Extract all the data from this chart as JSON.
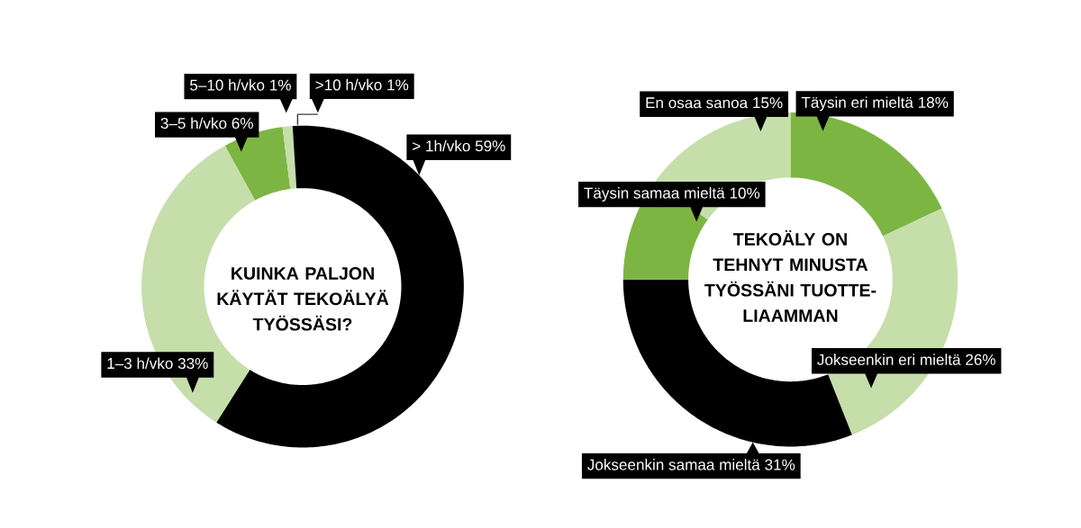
{
  "chart_data": [
    {
      "type": "donut",
      "title": "KUINKA PALJON KÄYTÄT TEKOÄLYÄ TYÖSSÄSI?",
      "categories": [
        "> 1h/vko",
        "1–3 h/vko",
        "3–5 h/vko",
        "5–10 h/vko",
        ">10 h/vko"
      ],
      "values": [
        59,
        33,
        6,
        1,
        1
      ],
      "value_labels": [
        "59%",
        "33%",
        "6%",
        "1%",
        "1%"
      ],
      "colors": [
        "#000000",
        "#c5deaa",
        "#7db542",
        "#c5deaa",
        "#000000"
      ]
    },
    {
      "type": "donut",
      "title": "TEKOÄLY ON TEHNYT MINUSTA TYÖSSÄNI TUOTTE-LIAAMMAN",
      "categories": [
        "Täysin eri mieltä",
        "Jokseenkin eri mieltä",
        "Jokseenkin samaa mieltä",
        "Täysin samaa mieltä",
        "En osaa sanoa"
      ],
      "values": [
        18,
        26,
        31,
        10,
        15
      ],
      "value_labels": [
        "18%",
        "26%",
        "31%",
        "10%",
        "15%"
      ],
      "colors": [
        "#7db542",
        "#c5deaa",
        "#000000",
        "#7db542",
        "#c5deaa"
      ]
    }
  ]
}
